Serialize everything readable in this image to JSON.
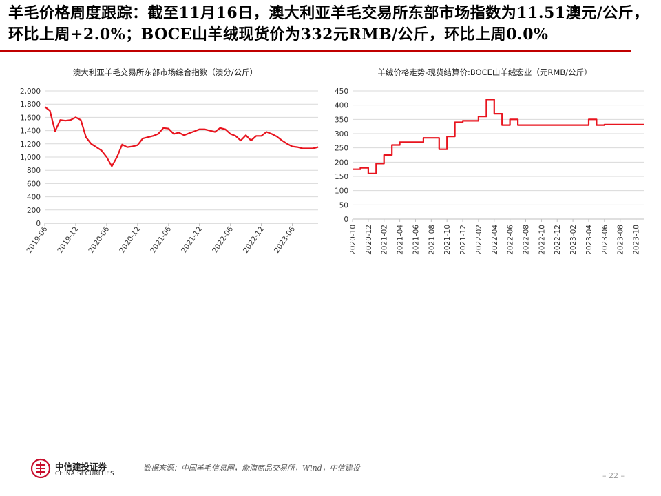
{
  "header": {
    "title": "羊毛价格周度跟踪：截至11月16日，澳大利亚羊毛交易所东部市场指数为11.51澳元/公斤，环比上周+2.0%；BOCE山羊绒现货价为332元RMB/公斤，环比上周0.0%",
    "rule_color": "#c00000"
  },
  "chart_data": [
    {
      "type": "line",
      "title": "澳大利亚羊毛交易所东部市场综合指数（澳分/公斤）",
      "xlabel": "",
      "ylabel": "",
      "ylim": [
        0,
        2000
      ],
      "yticks": [
        "0",
        "200",
        "400",
        "600",
        "800",
        "1,000",
        "1,200",
        "1,400",
        "1,600",
        "1,800",
        "2,000"
      ],
      "xticks": [
        "2019-06",
        "2019-12",
        "2020-06",
        "2020-12",
        "2021-06",
        "2021-12",
        "2022-06",
        "2022-12",
        "2023-06"
      ],
      "grid": true,
      "color": "#e8141e",
      "series": [
        {
          "x": [
            "2019-06",
            "2019-07",
            "2019-08",
            "2019-09",
            "2019-10",
            "2019-11",
            "2019-12",
            "2020-01",
            "2020-02",
            "2020-03",
            "2020-04",
            "2020-05",
            "2020-06",
            "2020-07",
            "2020-08",
            "2020-09",
            "2020-10",
            "2020-11",
            "2020-12",
            "2021-01",
            "2021-02",
            "2021-03",
            "2021-04",
            "2021-05",
            "2021-06",
            "2021-07",
            "2021-08",
            "2021-09",
            "2021-10",
            "2021-11",
            "2021-12",
            "2022-01",
            "2022-02",
            "2022-03",
            "2022-04",
            "2022-05",
            "2022-06",
            "2022-07",
            "2022-08",
            "2022-09",
            "2022-10",
            "2022-11",
            "2022-12",
            "2023-01",
            "2023-02",
            "2023-03",
            "2023-04",
            "2023-05",
            "2023-06",
            "2023-07",
            "2023-08",
            "2023-09",
            "2023-10",
            "2023-11"
          ],
          "values": [
            1760,
            1700,
            1390,
            1560,
            1550,
            1560,
            1600,
            1560,
            1300,
            1200,
            1150,
            1100,
            1000,
            860,
            1000,
            1190,
            1150,
            1160,
            1180,
            1280,
            1300,
            1320,
            1350,
            1440,
            1430,
            1350,
            1370,
            1330,
            1360,
            1390,
            1420,
            1420,
            1400,
            1380,
            1440,
            1420,
            1350,
            1320,
            1250,
            1330,
            1250,
            1320,
            1320,
            1380,
            1350,
            1310,
            1250,
            1200,
            1160,
            1150,
            1130,
            1130,
            1130,
            1151
          ]
        }
      ]
    },
    {
      "type": "line",
      "title": "羊绒价格走势-现货结算价:BOCE山羊绒宏业（元RMB/公斤）",
      "xlabel": "",
      "ylabel": "",
      "ylim": [
        0,
        450
      ],
      "yticks": [
        "0",
        "50",
        "100",
        "150",
        "200",
        "250",
        "300",
        "350",
        "400",
        "450"
      ],
      "xticks": [
        "2020-10",
        "2020-12",
        "2021-02",
        "2021-04",
        "2021-06",
        "2021-08",
        "2021-10",
        "2021-12",
        "2022-02",
        "2022-04",
        "2022-06",
        "2022-08",
        "2022-10",
        "2022-12",
        "2023-02",
        "2023-04",
        "2023-06",
        "2023-08",
        "2023-10"
      ],
      "grid": true,
      "color": "#e8141e",
      "series": [
        {
          "x": [
            "2020-10",
            "2020-11",
            "2020-12",
            "2021-01",
            "2021-02",
            "2021-03",
            "2021-04",
            "2021-05",
            "2021-06",
            "2021-07",
            "2021-08",
            "2021-09",
            "2021-10",
            "2021-11",
            "2021-12",
            "2022-01",
            "2022-02",
            "2022-03",
            "2022-04",
            "2022-05",
            "2022-06",
            "2022-07",
            "2022-08",
            "2022-09",
            "2022-10",
            "2022-11",
            "2022-12",
            "2023-01",
            "2023-02",
            "2023-03",
            "2023-04",
            "2023-05",
            "2023-06",
            "2023-07",
            "2023-08",
            "2023-09",
            "2023-10",
            "2023-11"
          ],
          "values": [
            175,
            180,
            160,
            195,
            225,
            260,
            270,
            270,
            270,
            285,
            285,
            245,
            290,
            340,
            345,
            345,
            360,
            420,
            370,
            330,
            350,
            330,
            330,
            330,
            330,
            330,
            330,
            330,
            330,
            330,
            350,
            330,
            332,
            332,
            332,
            332,
            332,
            332
          ]
        }
      ]
    }
  ],
  "footer": {
    "logo_cn": "中信建投证券",
    "logo_en": "CHINA SECURITIES",
    "logo_icon": "china-securities-logo-icon",
    "source": "数据来源：中国羊毛信息网，渤海商品交易所，Wind，中信建投",
    "page": "– 22 –"
  }
}
